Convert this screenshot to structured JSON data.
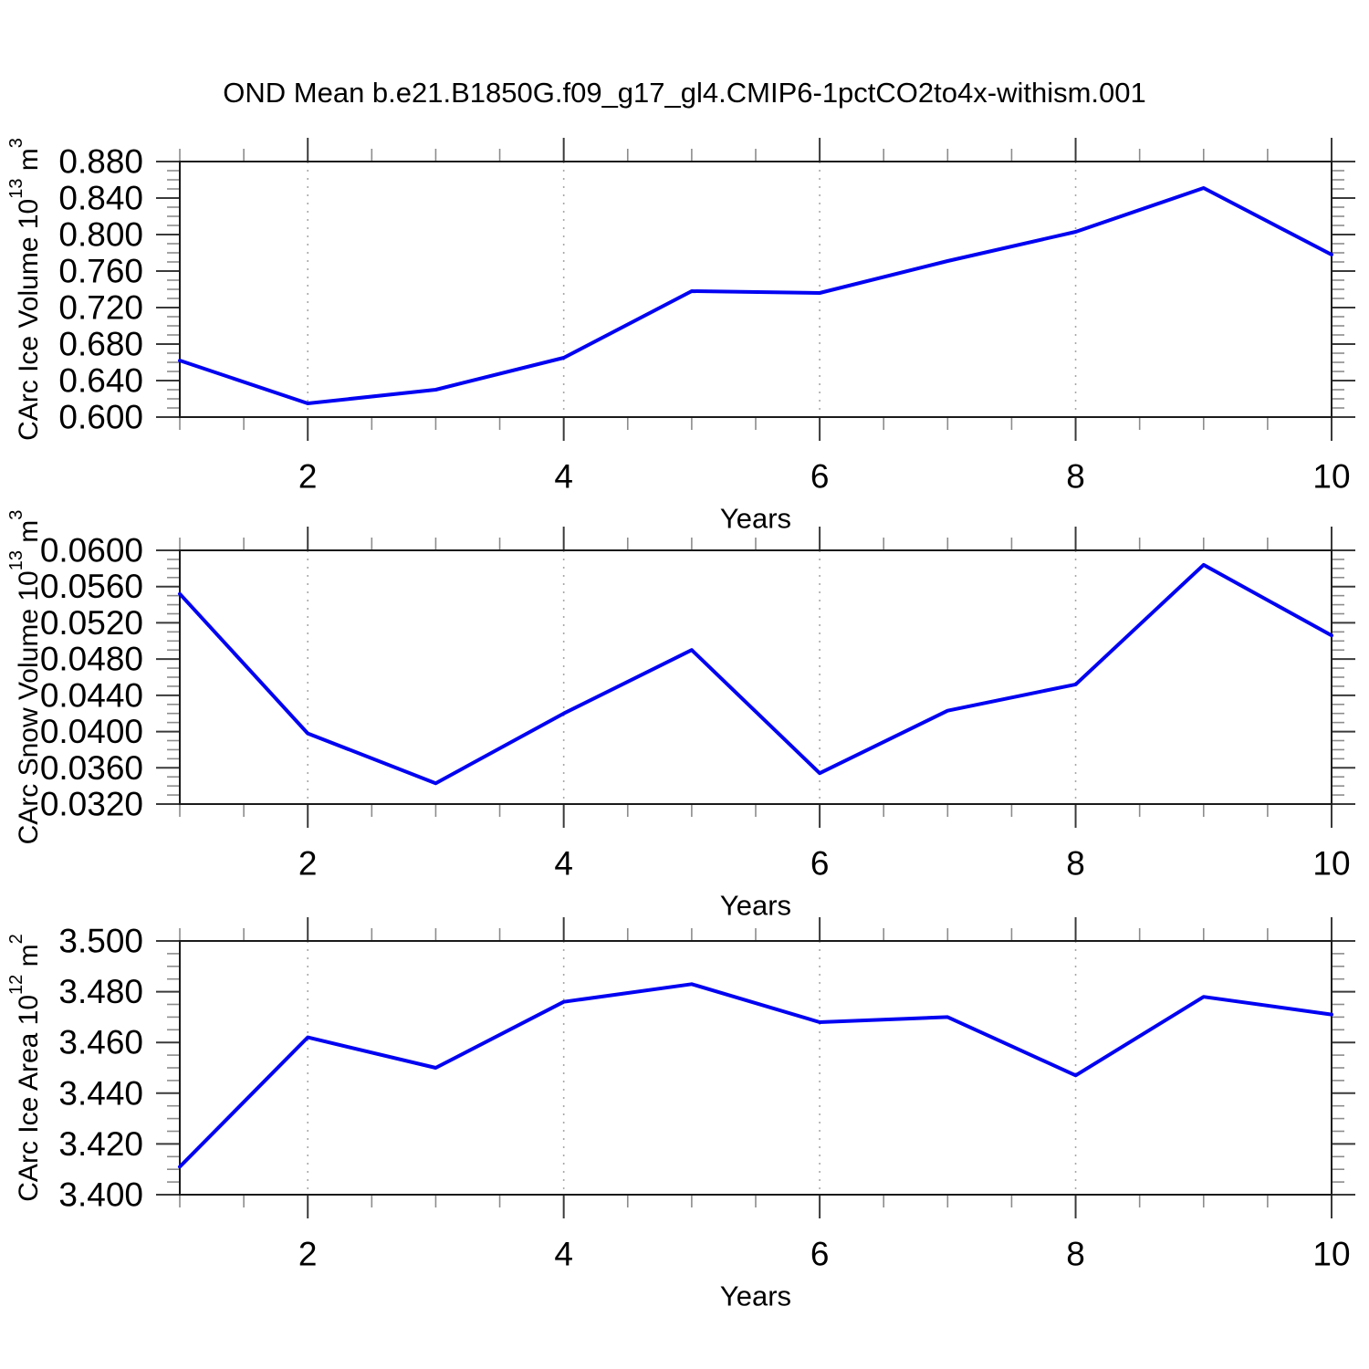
{
  "title": "OND Mean b.e21.B1850G.f09_g17_gl4.CMIP6-1pctCO2to4x-withism.001",
  "line_color": "#0202f2",
  "chart_data": [
    {
      "type": "line",
      "ylabel": "CArc Ice Volume 10¹³ m³",
      "ylabel_parts": [
        {
          "t": "CArc Ice Volume 10",
          "sup": false
        },
        {
          "t": "13",
          "sup": true
        },
        {
          "t": " m",
          "sup": false
        },
        {
          "t": "3",
          "sup": true
        }
      ],
      "xlabel": "Years",
      "x": [
        1,
        2,
        3,
        4,
        5,
        6,
        7,
        8,
        9,
        10
      ],
      "values": [
        0.662,
        0.615,
        0.63,
        0.665,
        0.738,
        0.736,
        0.771,
        0.803,
        0.851,
        0.778
      ],
      "xlim": [
        1,
        10
      ],
      "ylim": [
        0.6,
        0.88
      ],
      "ymajor_step": 0.04,
      "yminor_step": 0.01,
      "ytick_labels": [
        "0.880",
        "0.840",
        "0.800",
        "0.760",
        "0.720",
        "0.680",
        "0.640",
        "0.600"
      ],
      "xticks": [
        2,
        4,
        6,
        8,
        10
      ],
      "xtick_labels": [
        "2",
        "4",
        "6",
        "8",
        "10"
      ],
      "xminor_step": 0.5,
      "grid_x": [
        2,
        4,
        6,
        8
      ],
      "grid": "vertical-dashed",
      "legend": "none"
    },
    {
      "type": "line",
      "ylabel": "CArc Snow Volume 10¹³ m³",
      "ylabel_parts": [
        {
          "t": "CArc Snow Volume 10",
          "sup": false
        },
        {
          "t": "13",
          "sup": true
        },
        {
          "t": " m",
          "sup": false
        },
        {
          "t": "3",
          "sup": true
        }
      ],
      "xlabel": "Years",
      "x": [
        1,
        2,
        3,
        4,
        5,
        6,
        7,
        8,
        9,
        10
      ],
      "values": [
        0.0552,
        0.0398,
        0.0343,
        0.042,
        0.049,
        0.0354,
        0.0423,
        0.0452,
        0.0584,
        0.0506
      ],
      "xlim": [
        1,
        10
      ],
      "ylim": [
        0.032,
        0.06
      ],
      "ymajor_step": 0.004,
      "yminor_step": 0.001,
      "ytick_labels": [
        "0.0600",
        "0.0560",
        "0.0520",
        "0.0480",
        "0.0440",
        "0.0400",
        "0.0360",
        "0.0320"
      ],
      "xticks": [
        2,
        4,
        6,
        8,
        10
      ],
      "xtick_labels": [
        "2",
        "4",
        "6",
        "8",
        "10"
      ],
      "xminor_step": 0.5,
      "grid_x": [
        2,
        4,
        6,
        8
      ],
      "grid": "vertical-dashed",
      "legend": "none"
    },
    {
      "type": "line",
      "ylabel": "CArc Ice Area 10¹² m²",
      "ylabel_parts": [
        {
          "t": "CArc Ice Area 10",
          "sup": false
        },
        {
          "t": "12",
          "sup": true
        },
        {
          "t": " m",
          "sup": false
        },
        {
          "t": "2",
          "sup": true
        }
      ],
      "xlabel": "Years",
      "x": [
        1,
        2,
        3,
        4,
        5,
        6,
        7,
        8,
        9,
        10
      ],
      "values": [
        3.411,
        3.462,
        3.45,
        3.476,
        3.483,
        3.468,
        3.47,
        3.447,
        3.478,
        3.471
      ],
      "xlim": [
        1,
        10
      ],
      "ylim": [
        3.4,
        3.5
      ],
      "ymajor_step": 0.02,
      "yminor_step": 0.005,
      "ytick_labels": [
        "3.500",
        "3.480",
        "3.460",
        "3.440",
        "3.420",
        "3.400"
      ],
      "xticks": [
        2,
        4,
        6,
        8,
        10
      ],
      "xtick_labels": [
        "2",
        "4",
        "6",
        "8",
        "10"
      ],
      "xminor_step": 0.5,
      "grid_x": [
        2,
        4,
        6,
        8
      ],
      "grid": "vertical-dashed",
      "legend": "none"
    }
  ]
}
